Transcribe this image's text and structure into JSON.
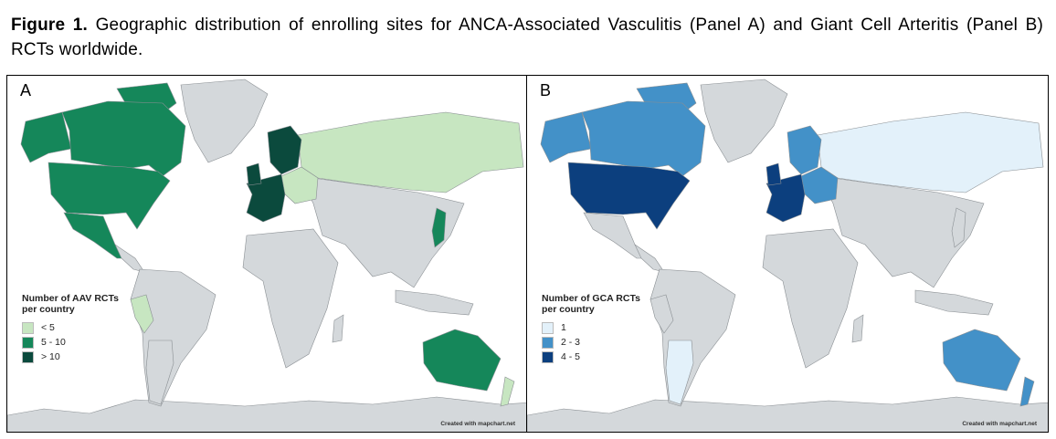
{
  "caption": {
    "label": "Figure 1.",
    "text": " Geographic distribution of enrolling sites for ANCA-Associated Vasculitis (Panel A) and Giant Cell Arteritis (Panel B) RCTs worldwide."
  },
  "colors": {
    "land": "#d4d8db",
    "border": "#8a8f93"
  },
  "panels": [
    {
      "label": "A",
      "legend_title": "Number of AAV RCTs per country",
      "legend": [
        {
          "label": "< 5",
          "color": "#c7e6c1"
        },
        {
          "label": "5 - 10",
          "color": "#15875a"
        },
        {
          "label": "> 10",
          "color": "#0b4a3d"
        }
      ],
      "countries": {
        "canada": 1,
        "alaska": 1,
        "usa": 1,
        "mexico": 1,
        "peru": 0,
        "western_europe": 2,
        "scandinavia": 2,
        "russia": 0,
        "east_europe": 0,
        "japan": 1,
        "australia": 1,
        "new_zealand": 0,
        "argentina": null
      },
      "credit": "Created with mapchart.net"
    },
    {
      "label": "B",
      "legend_title": "Number of GCA RCTs per country",
      "legend": [
        {
          "label": "1",
          "color": "#e3f1fa"
        },
        {
          "label": "2 - 3",
          "color": "#4391c8"
        },
        {
          "label": "4 - 5",
          "color": "#0c3f7e"
        }
      ],
      "countries": {
        "canada": 1,
        "alaska": 1,
        "usa": 2,
        "mexico": null,
        "peru": null,
        "western_europe": 2,
        "scandinavia": 1,
        "russia": 0,
        "east_europe": 1,
        "japan": null,
        "australia": 1,
        "new_zealand": 1,
        "argentina": 0
      },
      "credit": "Created with mapchart.net"
    }
  ]
}
